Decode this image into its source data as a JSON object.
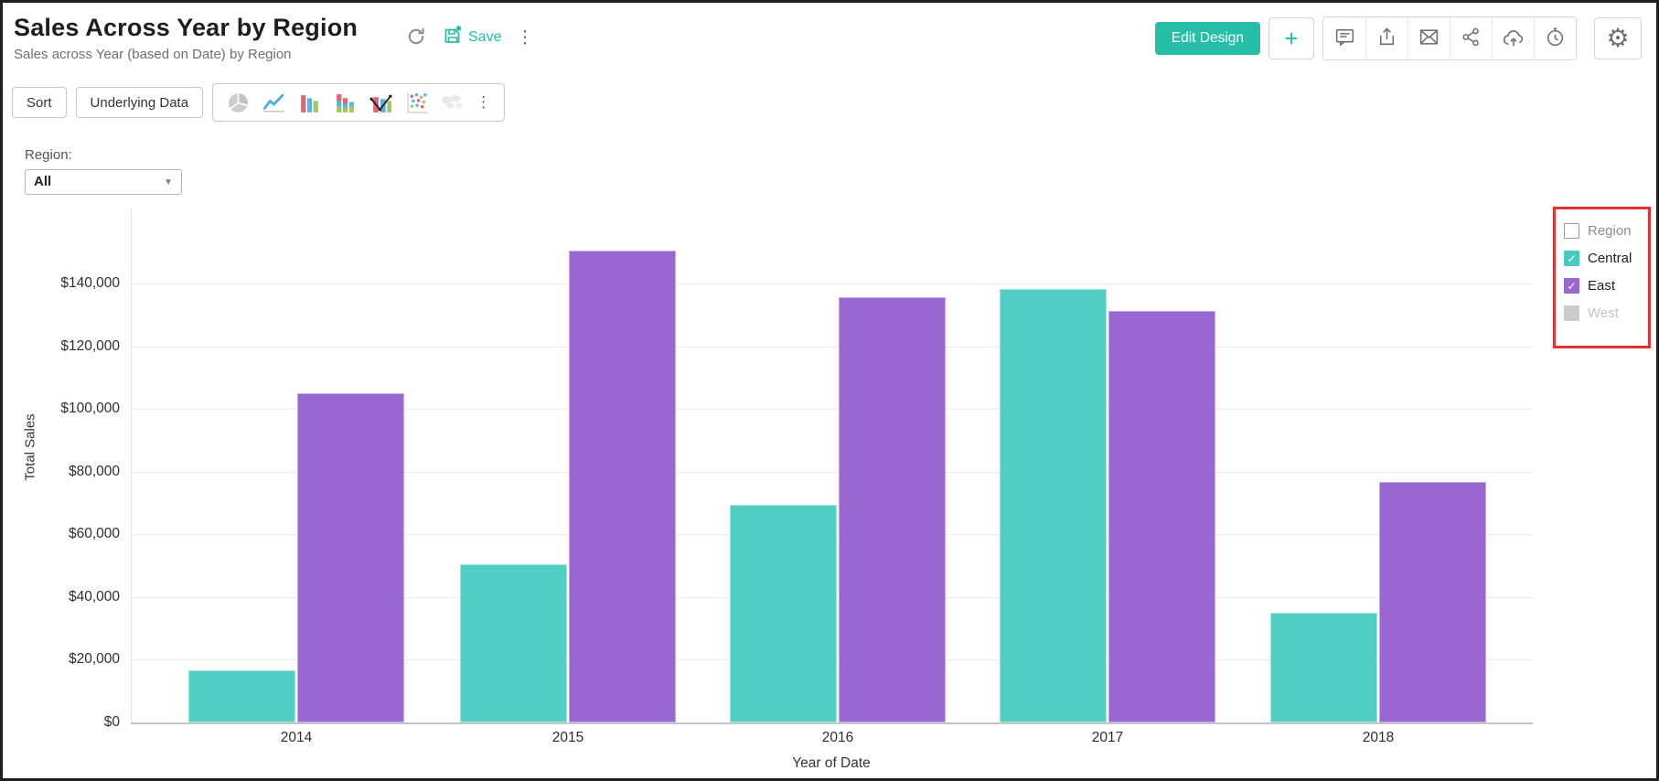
{
  "header": {
    "title": "Sales Across Year by Region",
    "subtitle": "Sales across Year (based on Date) by Region",
    "save_label": "Save",
    "edit_design_label": "Edit Design",
    "add_label": "+",
    "more_label": "⋮",
    "action_icon_names": [
      "refresh-icon",
      "save-icon",
      "more-vertical-icon"
    ],
    "right_icon_names": [
      "comment-icon",
      "export-icon",
      "mail-icon",
      "share-icon",
      "cloud-upload-icon",
      "schedule-icon",
      "settings-gear-icon"
    ]
  },
  "toolbar": {
    "sort_label": "Sort",
    "underlying_data_label": "Underlying Data",
    "more_label": "⋮",
    "chart_type_icon_names": [
      "pie-chart-icon",
      "line-chart-icon",
      "bar-chart-icon",
      "stacked-bar-icon",
      "combo-chart-icon",
      "scatter-chart-icon",
      "map-chart-icon"
    ]
  },
  "filter": {
    "label": "Region:",
    "value": "All"
  },
  "chart_data": {
    "type": "bar",
    "title": "Sales Across Year by Region",
    "categories": [
      "2014",
      "2015",
      "2016",
      "2017",
      "2018"
    ],
    "series": [
      {
        "name": "Central",
        "color": "#52cfc4",
        "values": [
          16500,
          50500,
          69500,
          138200,
          35000
        ]
      },
      {
        "name": "East",
        "color": "#9a66d2",
        "values": [
          105000,
          150500,
          135500,
          131200,
          76800
        ]
      }
    ],
    "xlabel": "Year of Date",
    "ylabel": "Total Sales",
    "yticks": [
      0,
      20000,
      40000,
      60000,
      80000,
      100000,
      120000,
      140000
    ],
    "ytick_labels": [
      "$0",
      "$20,000",
      "$40,000",
      "$60,000",
      "$80,000",
      "$100,000",
      "$120,000",
      "$140,000"
    ],
    "ylim": [
      0,
      163000
    ],
    "grid": "horizontal",
    "legend_position": "right"
  },
  "legend": {
    "annotation_color": "#e23333",
    "items": [
      {
        "label": "Region",
        "checkbox": "empty",
        "color": null,
        "label_style": "muted"
      },
      {
        "label": "Central",
        "checkbox": "checked",
        "color": "#45cbbf",
        "label_style": "normal"
      },
      {
        "label": "East",
        "checkbox": "checked",
        "color": "#9a66d2",
        "label_style": "normal"
      },
      {
        "label": "West",
        "checkbox": "gray",
        "color": "#cbcbcb",
        "label_style": "disabled"
      }
    ]
  }
}
